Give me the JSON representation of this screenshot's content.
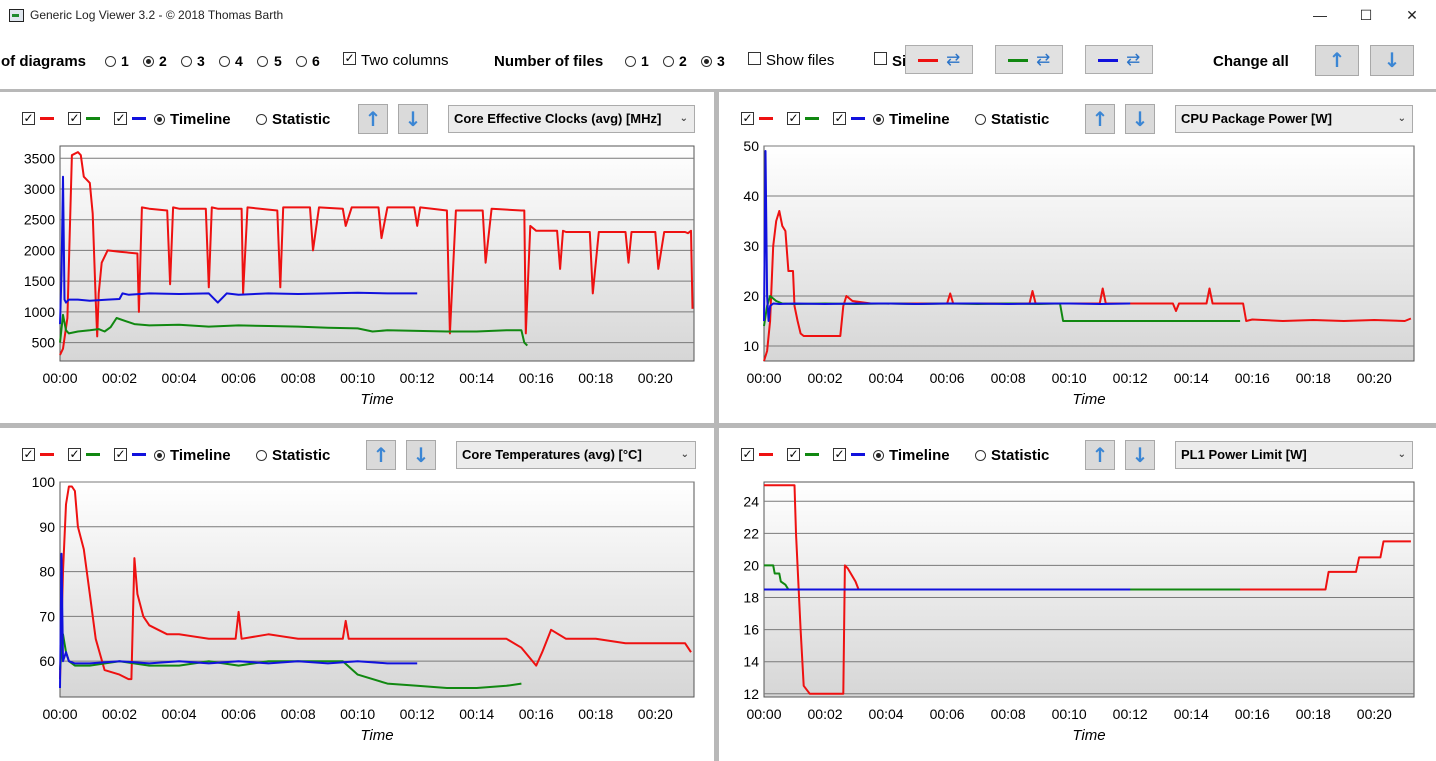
{
  "window": {
    "title": "Generic Log Viewer 3.2 - © 2018 Thomas Barth",
    "minimize": "—",
    "maximize": "☐",
    "close": "✕"
  },
  "toolbar": {
    "diagrams_label": "of diagrams",
    "diagram_options": [
      "1",
      "2",
      "3",
      "4",
      "5",
      "6"
    ],
    "diagram_selected": "2",
    "two_columns_label": "Two columns",
    "two_columns_checked": true,
    "files_label": "Number of files",
    "file_options": [
      "1",
      "2",
      "3"
    ],
    "files_selected": "3",
    "show_files_label": "Show files",
    "si_label": "Si",
    "change_all_label": "Change all",
    "file_colors": [
      "#ee1111",
      "#118811",
      "#1111dd"
    ]
  },
  "panel_common": {
    "timeline_label": "Timeline",
    "statistic_label": "Statistic",
    "time_axis_label": "Time",
    "x_ticks": [
      "00:00",
      "00:02",
      "00:04",
      "00:06",
      "00:08",
      "00:10",
      "00:12",
      "00:14",
      "00:16",
      "00:18",
      "00:20"
    ]
  },
  "panels": [
    {
      "select": "Core Effective Clocks (avg) [MHz]"
    },
    {
      "select": "CPU Package Power [W]"
    },
    {
      "select": "Core Temperatures (avg) [°C]"
    },
    {
      "select": "PL1 Power Limit [W]"
    }
  ],
  "chart_data": [
    {
      "type": "line",
      "title": "Core Effective Clocks (avg) [MHz]",
      "xlabel": "Time",
      "ylabel": "",
      "x_unit": "minutes",
      "xlim": [
        0,
        21.3
      ],
      "ylim": [
        200,
        3700
      ],
      "yticks": [
        500,
        1000,
        1500,
        2000,
        2500,
        3000,
        3500
      ],
      "grid": true,
      "series": [
        {
          "color": "#ee1111",
          "x": [
            0,
            0.1,
            0.25,
            0.4,
            0.6,
            0.7,
            0.8,
            1.0,
            1.1,
            1.2,
            1.25,
            1.3,
            1.4,
            1.6,
            2.0,
            2.6,
            2.65,
            2.75,
            3.0,
            3.6,
            3.7,
            3.8,
            4.0,
            4.9,
            5.0,
            5.1,
            5.3,
            6.1,
            6.15,
            6.3,
            7.3,
            7.4,
            7.5,
            8.4,
            8.5,
            8.7,
            9.5,
            9.6,
            9.8,
            10.7,
            10.8,
            11.0,
            11.9,
            12.0,
            12.1,
            12.5,
            13.0,
            13.1,
            13.3,
            14.2,
            14.3,
            14.5,
            15.5,
            15.6,
            15.65,
            15.8,
            16.0,
            16.7,
            16.8,
            16.9,
            17.0,
            17.8,
            17.9,
            18.1,
            19.0,
            19.1,
            19.2,
            20.0,
            20.1,
            20.3,
            21.0,
            21.1,
            21.2,
            21.25
          ],
          "y": [
            300,
            400,
            900,
            3550,
            3600,
            3550,
            3200,
            3100,
            2600,
            1200,
            600,
            1300,
            1800,
            2000,
            1980,
            1950,
            1000,
            2700,
            2680,
            2650,
            1450,
            2700,
            2680,
            2680,
            1400,
            2700,
            2680,
            2680,
            1300,
            2700,
            2650,
            1400,
            2700,
            2700,
            2000,
            2700,
            2680,
            2400,
            2700,
            2700,
            2200,
            2700,
            2700,
            2400,
            2700,
            2680,
            2650,
            650,
            2650,
            2650,
            1800,
            2680,
            2650,
            2650,
            650,
            2400,
            2320,
            2320,
            1700,
            2320,
            2300,
            2300,
            1300,
            2300,
            2300,
            1800,
            2300,
            2300,
            1700,
            2300,
            2300,
            2280,
            2320,
            1050
          ]
        },
        {
          "color": "#118811",
          "x": [
            0,
            0.1,
            0.2,
            0.3,
            0.6,
            1.0,
            1.3,
            1.5,
            1.7,
            1.9,
            2.5,
            3,
            4,
            5,
            6,
            7,
            8,
            9,
            10,
            10.5,
            11,
            12,
            13,
            14,
            15,
            15.5,
            15.6,
            15.7
          ],
          "y": [
            500,
            950,
            700,
            650,
            680,
            700,
            720,
            680,
            750,
            900,
            800,
            780,
            790,
            760,
            780,
            770,
            760,
            740,
            730,
            680,
            700,
            690,
            680,
            680,
            700,
            700,
            500,
            450
          ]
        },
        {
          "color": "#1111dd",
          "x": [
            0,
            0.05,
            0.1,
            0.15,
            0.2,
            0.3,
            0.6,
            1.0,
            1.6,
            2.0,
            2.1,
            2.3,
            3,
            4,
            5,
            5.3,
            5.6,
            6,
            7,
            8,
            9,
            10,
            11,
            11.5,
            12
          ],
          "y": [
            800,
            1600,
            3200,
            1200,
            1150,
            1200,
            1200,
            1180,
            1200,
            1210,
            1300,
            1280,
            1300,
            1290,
            1300,
            1150,
            1300,
            1280,
            1300,
            1290,
            1300,
            1310,
            1300,
            1300,
            1300
          ]
        }
      ]
    },
    {
      "type": "line",
      "title": "CPU Package Power [W]",
      "xlabel": "Time",
      "ylabel": "",
      "x_unit": "minutes",
      "xlim": [
        0,
        21.3
      ],
      "ylim": [
        7,
        50
      ],
      "yticks": [
        10,
        20,
        30,
        40,
        50
      ],
      "grid": true,
      "series": [
        {
          "color": "#ee1111",
          "x": [
            0,
            0.1,
            0.2,
            0.3,
            0.4,
            0.5,
            0.6,
            0.7,
            0.8,
            0.95,
            1.0,
            1.1,
            1.2,
            1.3,
            1.5,
            2.0,
            2.5,
            2.6,
            2.7,
            2.9,
            3.5,
            4,
            5,
            6,
            6.1,
            6.2,
            7,
            8,
            8.7,
            8.8,
            8.9,
            9.6,
            10,
            11,
            11.1,
            11.2,
            12,
            13,
            13.4,
            13.5,
            13.6,
            14,
            14.5,
            14.6,
            14.7,
            15.6,
            15.7,
            15.8,
            16,
            17,
            18,
            19,
            20,
            21,
            21.2
          ],
          "y": [
            7,
            9,
            15,
            30,
            35,
            37,
            34,
            33,
            25,
            25,
            18,
            15,
            12.5,
            12,
            12,
            12,
            12,
            18,
            20,
            19,
            18.5,
            18.5,
            18.5,
            18.5,
            20.5,
            18.5,
            18.5,
            18.5,
            18.5,
            21,
            18.5,
            18.5,
            18.5,
            18.5,
            21.5,
            18.5,
            18.5,
            18.5,
            18.5,
            17,
            18.5,
            18.5,
            18.5,
            21.5,
            18.5,
            18.5,
            18.5,
            15,
            15.3,
            15,
            15.2,
            15,
            15.2,
            15,
            15.5
          ]
        },
        {
          "color": "#118811",
          "x": [
            0,
            0.1,
            0.2,
            0.4,
            0.6,
            1,
            2,
            3,
            4,
            5,
            6,
            7,
            8,
            9,
            9.7,
            9.8,
            10,
            11,
            12,
            13,
            14,
            15,
            15.6
          ],
          "y": [
            14,
            18,
            20,
            19,
            18.5,
            18.4,
            18.5,
            18.4,
            18.5,
            18.4,
            18.5,
            18.4,
            18.5,
            18.4,
            18.5,
            15,
            15,
            15,
            15,
            15,
            15,
            15,
            15
          ]
        },
        {
          "color": "#1111dd",
          "x": [
            0,
            0.05,
            0.1,
            0.15,
            0.2,
            0.3,
            0.5,
            1,
            2,
            3,
            4,
            5,
            6,
            7,
            8,
            9,
            10,
            11,
            12
          ],
          "y": [
            15,
            49,
            20,
            15,
            18,
            18.5,
            18.4,
            18.5,
            18.4,
            18.5,
            18.5,
            18.4,
            18.5,
            18.5,
            18.4,
            18.5,
            18.5,
            18.4,
            18.5
          ]
        }
      ]
    },
    {
      "type": "line",
      "title": "Core Temperatures (avg) [°C]",
      "xlabel": "Time",
      "ylabel": "",
      "x_unit": "minutes",
      "xlim": [
        0,
        21.3
      ],
      "ylim": [
        52,
        100
      ],
      "yticks": [
        60,
        70,
        80,
        90,
        100
      ],
      "grid": true,
      "series": [
        {
          "color": "#ee1111",
          "x": [
            0,
            0.1,
            0.2,
            0.3,
            0.4,
            0.5,
            0.6,
            0.8,
            1.0,
            1.2,
            1.5,
            2.0,
            2.3,
            2.4,
            2.5,
            2.6,
            2.8,
            3,
            3.3,
            3.6,
            4,
            5,
            5.9,
            6,
            6.1,
            7,
            8,
            9,
            9.5,
            9.6,
            9.7,
            10,
            11,
            12,
            13,
            14,
            15,
            15.5,
            16,
            16.2,
            16.5,
            17,
            18,
            19,
            20,
            21,
            21.2
          ],
          "y": [
            56,
            80,
            95,
            99,
            99,
            98,
            90,
            85,
            75,
            65,
            58,
            57,
            56,
            56,
            83,
            75,
            70,
            68,
            67,
            66,
            66,
            65,
            65,
            71,
            65,
            66,
            65,
            65,
            65,
            69,
            65,
            65,
            65,
            65,
            65,
            65,
            65,
            63,
            59,
            62,
            67,
            65,
            65,
            64,
            64,
            64,
            62
          ]
        },
        {
          "color": "#118811",
          "x": [
            0,
            0.1,
            0.2,
            0.3,
            0.5,
            1,
            2,
            3,
            4,
            5,
            6,
            7,
            8,
            9,
            9.5,
            10,
            11,
            12,
            13,
            14,
            15,
            15.5
          ],
          "y": [
            58,
            66,
            62,
            60,
            59,
            59,
            60,
            59,
            59,
            60,
            59,
            60,
            60,
            60,
            60,
            57,
            55,
            54.5,
            54,
            54,
            54.5,
            55
          ]
        },
        {
          "color": "#1111dd",
          "x": [
            0,
            0.05,
            0.1,
            0.2,
            0.3,
            0.5,
            1,
            2,
            3,
            4,
            5,
            6,
            7,
            8,
            9,
            10,
            11,
            12
          ],
          "y": [
            54,
            84,
            60,
            62,
            60,
            59.5,
            59.5,
            60,
            59.5,
            60,
            59.5,
            60,
            59.5,
            60,
            59.5,
            60,
            59.5,
            59.5
          ]
        }
      ]
    },
    {
      "type": "line",
      "title": "PL1 Power Limit [W]",
      "xlabel": "Time",
      "ylabel": "",
      "x_unit": "minutes",
      "xlim": [
        0,
        21.3
      ],
      "ylim": [
        11.8,
        25.2
      ],
      "yticks": [
        12,
        14,
        16,
        18,
        20,
        22,
        24
      ],
      "grid": true,
      "series": [
        {
          "color": "#ee1111",
          "x": [
            0,
            1.0,
            1.05,
            1.2,
            1.3,
            1.5,
            2.0,
            2.6,
            2.65,
            2.75,
            3.0,
            3.1,
            3.3,
            18.4,
            18.5,
            19.4,
            19.5,
            20.2,
            20.3,
            21.2
          ],
          "y": [
            25,
            25,
            22,
            16,
            12.5,
            12,
            12,
            12,
            20,
            19.8,
            19,
            18.5,
            18.5,
            18.5,
            19.6,
            19.6,
            20.5,
            20.5,
            21.5,
            21.5
          ]
        },
        {
          "color": "#118811",
          "x": [
            0,
            0.3,
            0.35,
            0.5,
            0.55,
            0.7,
            0.8,
            15.6
          ],
          "y": [
            20,
            20,
            19.5,
            19.5,
            19,
            18.8,
            18.5,
            18.5
          ]
        },
        {
          "color": "#1111dd",
          "x": [
            0,
            12
          ],
          "y": [
            18.5,
            18.5
          ]
        }
      ]
    }
  ]
}
